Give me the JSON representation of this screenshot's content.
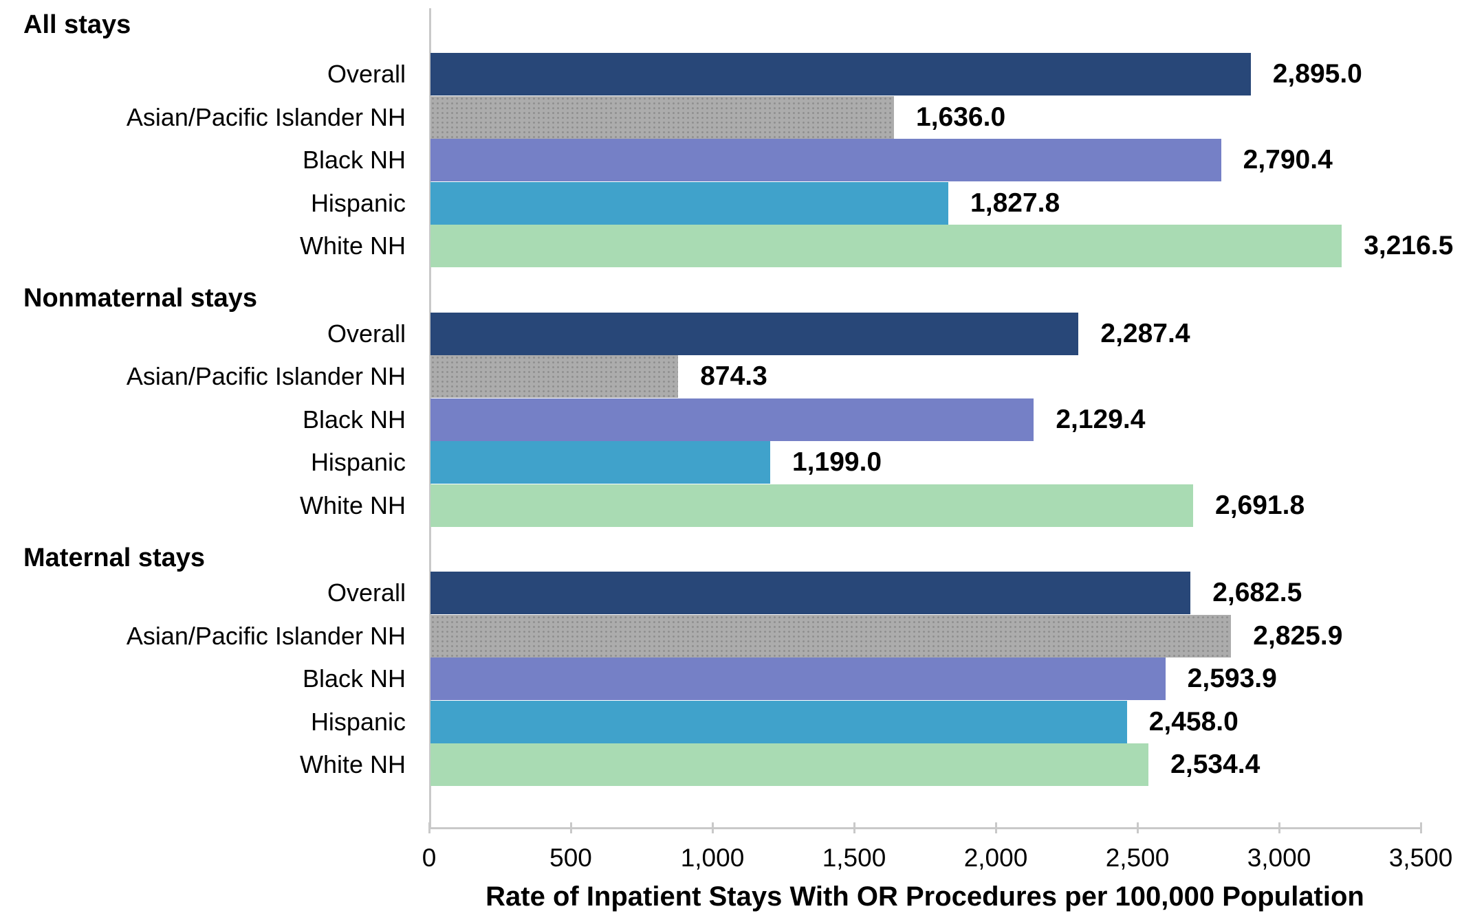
{
  "chart_data": {
    "type": "bar",
    "orientation": "horizontal",
    "xlabel": "Rate of Inpatient Stays With OR Procedures per 100,000 Population",
    "xlim": [
      0,
      3500
    ],
    "xticks": [
      0,
      500,
      1000,
      1500,
      2000,
      2500,
      3000,
      3500
    ],
    "xtick_labels": [
      "0",
      "500",
      "1,000",
      "1,500",
      "2,000",
      "2,500",
      "3,000",
      "3,500"
    ],
    "grid": false,
    "legend": "none",
    "value_labels_shown": true,
    "axis_color": "#c9c9c9",
    "palette": {
      "Overall": {
        "color": "#284778",
        "pattern": "solid"
      },
      "Asian/Pacific Islander NH": {
        "color": "#acacac",
        "pattern": "dots"
      },
      "Black NH": {
        "color": "#7580c6",
        "pattern": "solid"
      },
      "Hispanic": {
        "color": "#40a2cb",
        "pattern": "solid"
      },
      "White NH": {
        "color": "#a9dbb3",
        "pattern": "solid"
      }
    },
    "groups": [
      {
        "label": "All stays",
        "bars": [
          {
            "category": "Overall",
            "value": 2895.0,
            "label": "2,895.0"
          },
          {
            "category": "Asian/Pacific Islander NH",
            "value": 1636.0,
            "label": "1,636.0"
          },
          {
            "category": "Black NH",
            "value": 2790.4,
            "label": "2,790.4"
          },
          {
            "category": "Hispanic",
            "value": 1827.8,
            "label": "1,827.8"
          },
          {
            "category": "White NH",
            "value": 3216.5,
            "label": "3,216.5"
          }
        ]
      },
      {
        "label": "Nonmaternal stays",
        "bars": [
          {
            "category": "Overall",
            "value": 2287.4,
            "label": "2,287.4"
          },
          {
            "category": "Asian/Pacific Islander NH",
            "value": 874.3,
            "label": "874.3"
          },
          {
            "category": "Black NH",
            "value": 2129.4,
            "label": "2,129.4"
          },
          {
            "category": "Hispanic",
            "value": 1199.0,
            "label": "1,199.0"
          },
          {
            "category": "White NH",
            "value": 2691.8,
            "label": "2,691.8"
          }
        ]
      },
      {
        "label": "Maternal stays",
        "bars": [
          {
            "category": "Overall",
            "value": 2682.5,
            "label": "2,682.5"
          },
          {
            "category": "Asian/Pacific Islander NH",
            "value": 2825.9,
            "label": "2,825.9"
          },
          {
            "category": "Black NH",
            "value": 2593.9,
            "label": "2,593.9"
          },
          {
            "category": "Hispanic",
            "value": 2458.0,
            "label": "2,458.0"
          },
          {
            "category": "White NH",
            "value": 2534.4,
            "label": "2,534.4"
          }
        ]
      }
    ]
  }
}
